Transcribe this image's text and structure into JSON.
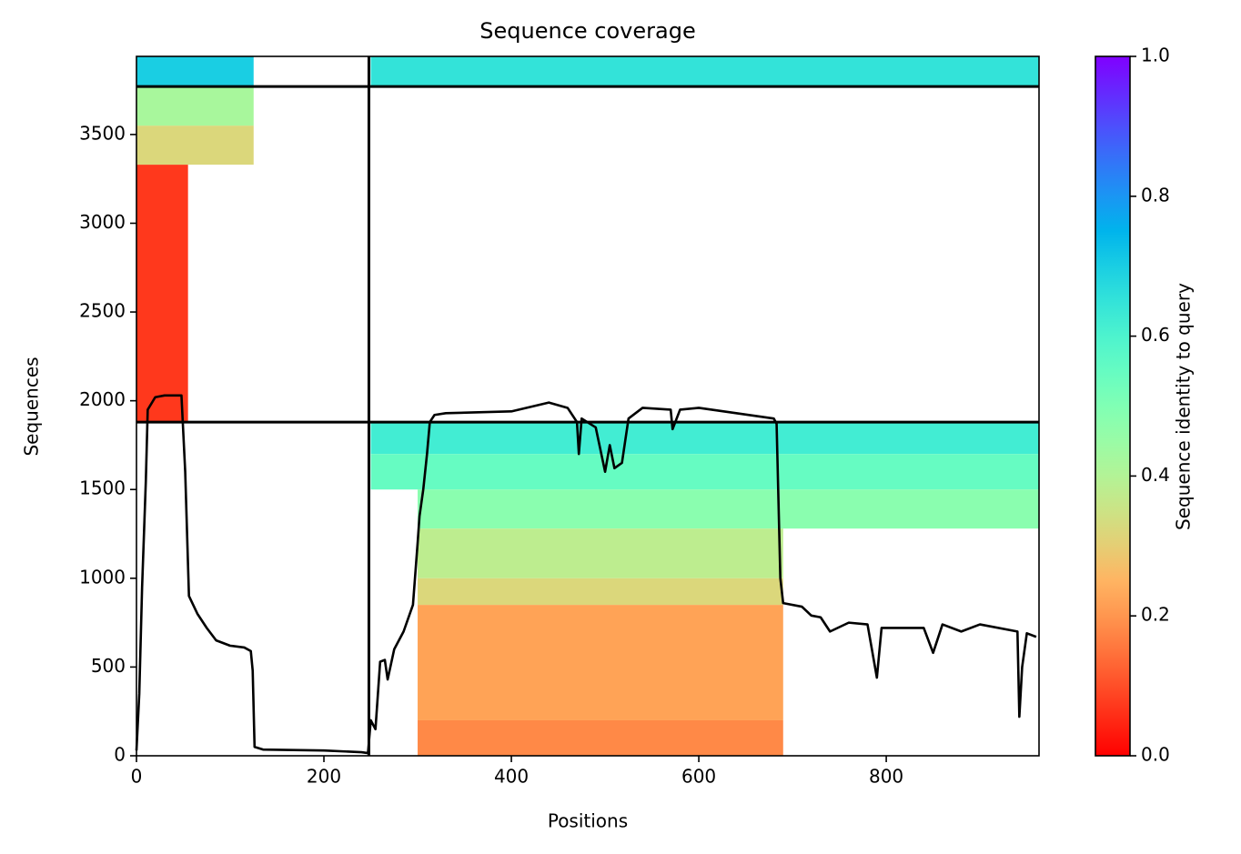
{
  "chart_data": {
    "type": "coverage",
    "title": "Sequence coverage",
    "xlabel": "Positions",
    "ylabel": "Sequences",
    "xlim": [
      0,
      963
    ],
    "ylim": [
      0,
      3940
    ],
    "xticks": [
      0,
      200,
      400,
      600,
      800
    ],
    "yticks": [
      0,
      500,
      1000,
      1500,
      2000,
      2500,
      3000,
      3500
    ],
    "colormap": "rainbow_r",
    "blocks": [
      {
        "x": [
          0,
          55
        ],
        "y": [
          1880,
          3330
        ],
        "value": 0.07
      },
      {
        "x": [
          0,
          125
        ],
        "y": [
          3330,
          3550
        ],
        "value": 0.32
      },
      {
        "x": [
          0,
          125
        ],
        "y": [
          3550,
          3770
        ],
        "value": 0.42
      },
      {
        "x": [
          0,
          125
        ],
        "y": [
          3770,
          3940
        ],
        "value": 0.7
      },
      {
        "x": [
          250,
          963
        ],
        "y": [
          3770,
          3940
        ],
        "value": 0.65
      },
      {
        "x": [
          250,
          963
        ],
        "y": [
          1700,
          1880
        ],
        "value": 0.62
      },
      {
        "x": [
          250,
          963
        ],
        "y": [
          1500,
          1700
        ],
        "value": 0.55
      },
      {
        "x": [
          300,
          963
        ],
        "y": [
          1280,
          1500
        ],
        "value": 0.48
      },
      {
        "x": [
          300,
          690
        ],
        "y": [
          1000,
          1280
        ],
        "value": 0.38
      },
      {
        "x": [
          300,
          690
        ],
        "y": [
          850,
          1000
        ],
        "value": 0.32
      },
      {
        "x": [
          300,
          690
        ],
        "y": [
          200,
          850
        ],
        "value": 0.22
      },
      {
        "x": [
          300,
          690
        ],
        "y": [
          0,
          200
        ],
        "value": 0.18
      }
    ],
    "boundaries": {
      "x": [
        248
      ],
      "y": [
        1880,
        3770
      ]
    },
    "coverage": {
      "color": "#000000",
      "x": [
        0,
        3,
        6,
        10,
        12,
        20,
        30,
        48,
        52,
        56,
        65,
        75,
        85,
        100,
        115,
        122,
        124,
        126,
        135,
        200,
        240,
        247,
        250,
        255,
        260,
        265,
        268,
        275,
        285,
        295,
        300,
        302,
        306,
        310,
        313,
        318,
        330,
        400,
        440,
        460,
        470,
        472,
        475,
        490,
        500,
        505,
        510,
        518,
        525,
        540,
        570,
        572,
        580,
        600,
        640,
        680,
        683,
        687,
        690,
        710,
        720,
        730,
        740,
        760,
        780,
        790,
        795,
        840,
        850,
        860,
        880,
        900,
        940,
        942,
        945,
        950,
        960
      ],
      "values": [
        30,
        350,
        950,
        1550,
        1950,
        2020,
        2030,
        2030,
        1600,
        900,
        800,
        720,
        650,
        620,
        610,
        590,
        480,
        50,
        35,
        30,
        20,
        15,
        200,
        150,
        530,
        540,
        430,
        600,
        700,
        850,
        1200,
        1350,
        1500,
        1700,
        1880,
        1920,
        1930,
        1940,
        1990,
        1960,
        1880,
        1700,
        1900,
        1850,
        1600,
        1750,
        1620,
        1650,
        1900,
        1960,
        1950,
        1840,
        1950,
        1960,
        1930,
        1900,
        1870,
        1000,
        860,
        840,
        790,
        780,
        700,
        750,
        740,
        440,
        720,
        720,
        580,
        740,
        700,
        740,
        700,
        220,
        500,
        690,
        670
      ]
    },
    "colorbar": {
      "label": "Sequence identity to query",
      "lim": [
        0,
        1
      ],
      "ticks": [
        {
          "value": 0,
          "label": "0.0"
        },
        0.2,
        0.4,
        0.6,
        0.8,
        {
          "value": 1,
          "label": "1.0"
        }
      ]
    }
  }
}
